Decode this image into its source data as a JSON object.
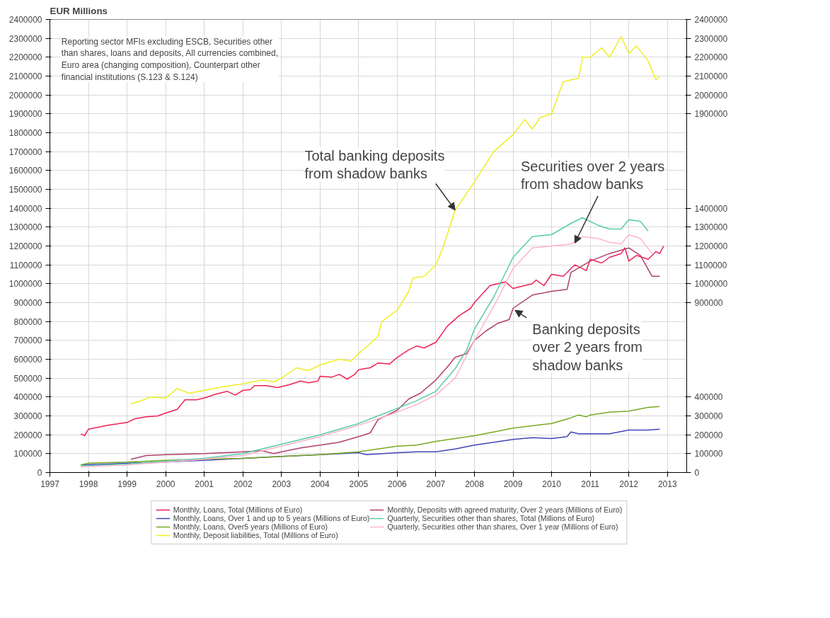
{
  "chart_data": {
    "type": "line",
    "ylabel": "EUR Millions",
    "xlim": [
      1997,
      2013.5
    ],
    "xticks": [
      1997,
      1998,
      1999,
      2000,
      2001,
      2002,
      2003,
      2004,
      2005,
      2006,
      2007,
      2008,
      2009,
      2010,
      2011,
      2012,
      2013
    ],
    "ylim": [
      0,
      2400000
    ],
    "yticks": [
      0,
      100000,
      200000,
      300000,
      400000,
      500000,
      600000,
      700000,
      800000,
      900000,
      1000000,
      1100000,
      1200000,
      1300000,
      1400000,
      1500000,
      1600000,
      1700000,
      1800000,
      1900000,
      2000000,
      2100000,
      2200000,
      2300000,
      2400000
    ],
    "y2lim": [
      0,
      2400000
    ],
    "y2ticks": [
      0,
      100000,
      200000,
      300000,
      400000,
      900000,
      1000000,
      1100000,
      1200000,
      1300000,
      1400000,
      1900000,
      2000000,
      2100000,
      2200000,
      2300000,
      2400000
    ],
    "grid": true,
    "legend": "bottom",
    "marker": "none",
    "line_style": "solid",
    "annotations": [
      "Reporting sector  MFIs excluding ESCB, Securities other than shares, loans and deposits, All currencies combined, Euro area (changing composition), Counterpart other financial institutions (S.123 & S.124)",
      {
        "text": "Total banking deposits from shadow banks",
        "x": 2007.5,
        "y": 1390000
      },
      {
        "text": "Securities over 2 years from shadow banks",
        "x": 2010.6,
        "y": 1215000
      },
      {
        "text": "Banking deposits over 2 years from shadow banks",
        "x": 2009.05,
        "y": 860000
      }
    ],
    "series": [
      {
        "name": "Monthly, Loans, Total (Millions of Euro)",
        "color": "#ee2255",
        "x": [
          1997.8,
          1997.9,
          1998.0,
          1998.5,
          1999.0,
          1999.2,
          1999.5,
          1999.8,
          2000.0,
          2000.3,
          2000.5,
          2000.8,
          2001.0,
          2001.3,
          2001.6,
          2001.8,
          2002.0,
          2002.2,
          2002.3,
          2002.6,
          2002.9,
          2003.2,
          2003.5,
          2003.7,
          2003.95,
          2004.0,
          2004.3,
          2004.5,
          2004.7,
          2004.9,
          2005.0,
          2005.3,
          2005.5,
          2005.8,
          2006.0,
          2006.3,
          2006.5,
          2006.7,
          2007.0,
          2007.3,
          2007.6,
          2007.9,
          2008.0,
          2008.4,
          2008.6,
          2008.8,
          2009.0,
          2009.5,
          2009.6,
          2009.8,
          2010.0,
          2010.3,
          2010.5,
          2010.6,
          2010.9,
          2011.0,
          2011.3,
          2011.5,
          2011.8,
          2011.9,
          2012.0,
          2012.2,
          2012.5,
          2012.7,
          2012.8,
          2012.9
        ],
        "values": [
          205000,
          195000,
          230000,
          250000,
          265000,
          285000,
          295000,
          300000,
          315000,
          335000,
          385000,
          385000,
          395000,
          415000,
          430000,
          410000,
          435000,
          440000,
          460000,
          460000,
          450000,
          465000,
          485000,
          475000,
          485000,
          510000,
          505000,
          520000,
          495000,
          520000,
          545000,
          555000,
          580000,
          575000,
          610000,
          650000,
          670000,
          660000,
          690000,
          776000,
          830000,
          870000,
          900000,
          990000,
          1000000,
          1010000,
          975000,
          1000000,
          1020000,
          990000,
          1050000,
          1040000,
          1080000,
          1100000,
          1070000,
          1130000,
          1110000,
          1140000,
          1160000,
          1190000,
          1120000,
          1150000,
          1130000,
          1170000,
          1160000,
          1200000
        ]
      },
      {
        "name": "Monthly, Loans, Over 1 and up to 5 years (Millions of Euro)",
        "color": "#4444bb",
        "x": [
          1997.8,
          1998.5,
          1999.0,
          2000.0,
          2001.0,
          2002.0,
          2003.0,
          2004.0,
          2005.0,
          2005.2,
          2006.0,
          2006.5,
          2007.0,
          2007.5,
          2008.0,
          2008.5,
          2009.0,
          2009.5,
          2010.0,
          2010.4,
          2010.5,
          2010.7,
          2011.0,
          2011.5,
          2012.0,
          2012.5,
          2012.8
        ],
        "values": [
          40000,
          45000,
          50000,
          55000,
          65000,
          75000,
          85000,
          95000,
          105000,
          95000,
          105000,
          110000,
          110000,
          125000,
          145000,
          160000,
          175000,
          185000,
          180000,
          190000,
          215000,
          205000,
          205000,
          205000,
          225000,
          225000,
          230000
        ]
      },
      {
        "name": "Monthly, Loans, Over5 years (Millions of Euro)",
        "color": "#77aa22",
        "x": [
          1997.8,
          1998.0,
          1999.0,
          2000.0,
          2001.0,
          2002.0,
          2003.0,
          2004.0,
          2005.0,
          2006.0,
          2006.5,
          2007.0,
          2008.0,
          2008.5,
          2009.0,
          2010.0,
          2010.5,
          2010.7,
          2010.9,
          2011.0,
          2011.5,
          2012.0,
          2012.5,
          2012.8
        ],
        "values": [
          40000,
          50000,
          55000,
          65000,
          70000,
          75000,
          85000,
          95000,
          110000,
          140000,
          145000,
          165000,
          195000,
          215000,
          235000,
          260000,
          290000,
          305000,
          295000,
          305000,
          320000,
          325000,
          345000,
          350000
        ]
      },
      {
        "name": "Monthly, Deposit liabilities, Total (Millions of Euro)",
        "color": "#eeee22",
        "x": [
          1999.1,
          1999.3,
          1999.6,
          2000.0,
          2000.3,
          2000.6,
          2001.0,
          2001.5,
          2002.0,
          2002.5,
          2002.8,
          2003.0,
          2003.4,
          2003.7,
          2004.0,
          2004.5,
          2004.8,
          2005.0,
          2005.5,
          2005.6,
          2006.0,
          2006.3,
          2006.4,
          2006.7,
          2007.0,
          2007.2,
          2007.5,
          2008.0,
          2008.5,
          2009.0,
          2009.3,
          2009.5,
          2009.7,
          2010.0,
          2010.3,
          2010.7,
          2010.8,
          2011.0,
          2011.3,
          2011.5,
          2011.8,
          2012.0,
          2012.2,
          2012.5,
          2012.7,
          2012.8
        ],
        "values": [
          365000,
          375000,
          400000,
          395000,
          445000,
          420000,
          435000,
          455000,
          470000,
          490000,
          480000,
          500000,
          555000,
          540000,
          570000,
          600000,
          590000,
          630000,
          720000,
          800000,
          860000,
          960000,
          1030000,
          1040000,
          1100000,
          1200000,
          1390000,
          1540000,
          1700000,
          1790000,
          1870000,
          1820000,
          1880000,
          1900000,
          2070000,
          2090000,
          2200000,
          2200000,
          2250000,
          2200000,
          2310000,
          2220000,
          2260000,
          2180000,
          2080000,
          2100000
        ]
      },
      {
        "name": "Monthly, Deposits with agreed maturity, Over 2 years (Millions of Euro)",
        "color": "#b04070",
        "x": [
          1999.1,
          1999.5,
          2000.0,
          2001.0,
          2002.0,
          2002.5,
          2002.8,
          2003.0,
          2003.5,
          2004.0,
          2004.5,
          2005.0,
          2005.3,
          2005.5,
          2006.0,
          2006.3,
          2006.6,
          2007.0,
          2007.3,
          2007.5,
          2007.8,
          2008.0,
          2008.3,
          2008.6,
          2008.9,
          2009.0,
          2009.5,
          2010.0,
          2010.4,
          2010.5,
          2011.0,
          2011.5,
          2012.0,
          2012.3,
          2012.6,
          2012.8
        ],
        "values": [
          70000,
          90000,
          95000,
          100000,
          110000,
          115000,
          100000,
          110000,
          130000,
          145000,
          160000,
          190000,
          210000,
          280000,
          330000,
          390000,
          420000,
          490000,
          560000,
          610000,
          630000,
          700000,
          750000,
          790000,
          810000,
          870000,
          940000,
          960000,
          970000,
          1060000,
          1120000,
          1160000,
          1190000,
          1150000,
          1040000,
          1040000
        ]
      },
      {
        "name": "Quarterly, Securities other than shares, Total (Millions of Euro)",
        "color": "#55ccaa",
        "x": [
          1997.8,
          1999.0,
          2000.0,
          2001.0,
          2002.0,
          2003.0,
          2004.0,
          2005.0,
          2005.5,
          2006.0,
          2006.5,
          2007.0,
          2007.5,
          2007.8,
          2008.0,
          2008.5,
          2009.0,
          2009.5,
          2010.0,
          2010.5,
          2010.8,
          2011.2,
          2011.5,
          2011.8,
          2012.0,
          2012.3,
          2012.5
        ],
        "values": [
          35000,
          45000,
          60000,
          75000,
          100000,
          150000,
          200000,
          260000,
          300000,
          340000,
          380000,
          430000,
          550000,
          650000,
          760000,
          930000,
          1140000,
          1250000,
          1260000,
          1320000,
          1350000,
          1310000,
          1290000,
          1290000,
          1340000,
          1330000,
          1280000
        ]
      },
      {
        "name": "Quarterly, Securities other than shares, Over 1 year (Millions of Euro)",
        "color": "#ffb6c8",
        "x": [
          1997.8,
          1999.0,
          2000.0,
          2001.0,
          2002.0,
          2003.0,
          2004.0,
          2005.0,
          2006.0,
          2006.5,
          2007.0,
          2007.5,
          2008.0,
          2008.5,
          2009.0,
          2009.5,
          2010.0,
          2010.5,
          2010.8,
          2011.2,
          2011.5,
          2011.8,
          2012.0,
          2012.3,
          2012.6
        ],
        "values": [
          30000,
          40000,
          55000,
          70000,
          90000,
          140000,
          190000,
          250000,
          320000,
          360000,
          410000,
          500000,
          700000,
          880000,
          1080000,
          1190000,
          1200000,
          1210000,
          1250000,
          1240000,
          1220000,
          1210000,
          1260000,
          1240000,
          1160000
        ]
      }
    ]
  }
}
